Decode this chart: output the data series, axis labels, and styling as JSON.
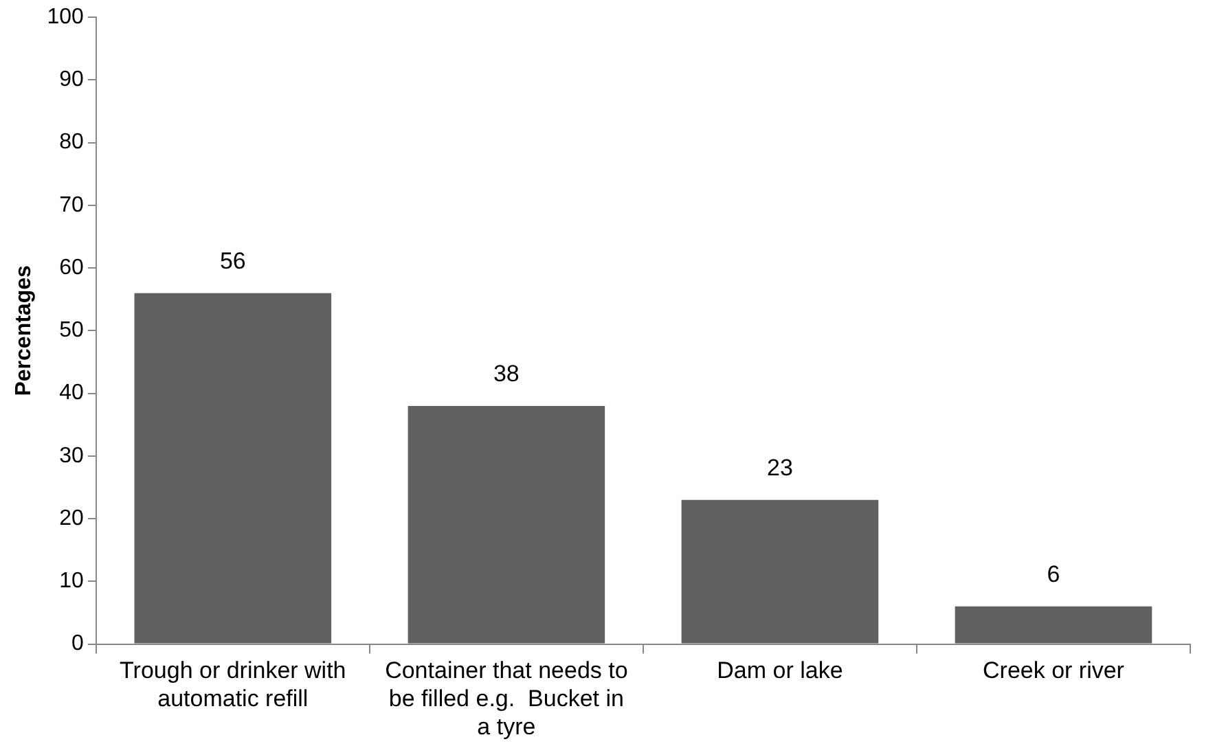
{
  "chart_data": {
    "type": "bar",
    "ylabel": "Percentages",
    "categories": [
      "Trough or drinker with automatic refill",
      "Container that needs to be filled e.g.  Bucket in a tyre",
      "Dam or lake",
      "Creek or river"
    ],
    "values": [
      56,
      38,
      23,
      6
    ],
    "color": "#606060",
    "ylim": [
      0,
      100
    ],
    "yticks": [
      0,
      10,
      20,
      30,
      40,
      50,
      60,
      70,
      80,
      90,
      100
    ],
    "grid": false,
    "legend": false,
    "data_labels": true
  }
}
